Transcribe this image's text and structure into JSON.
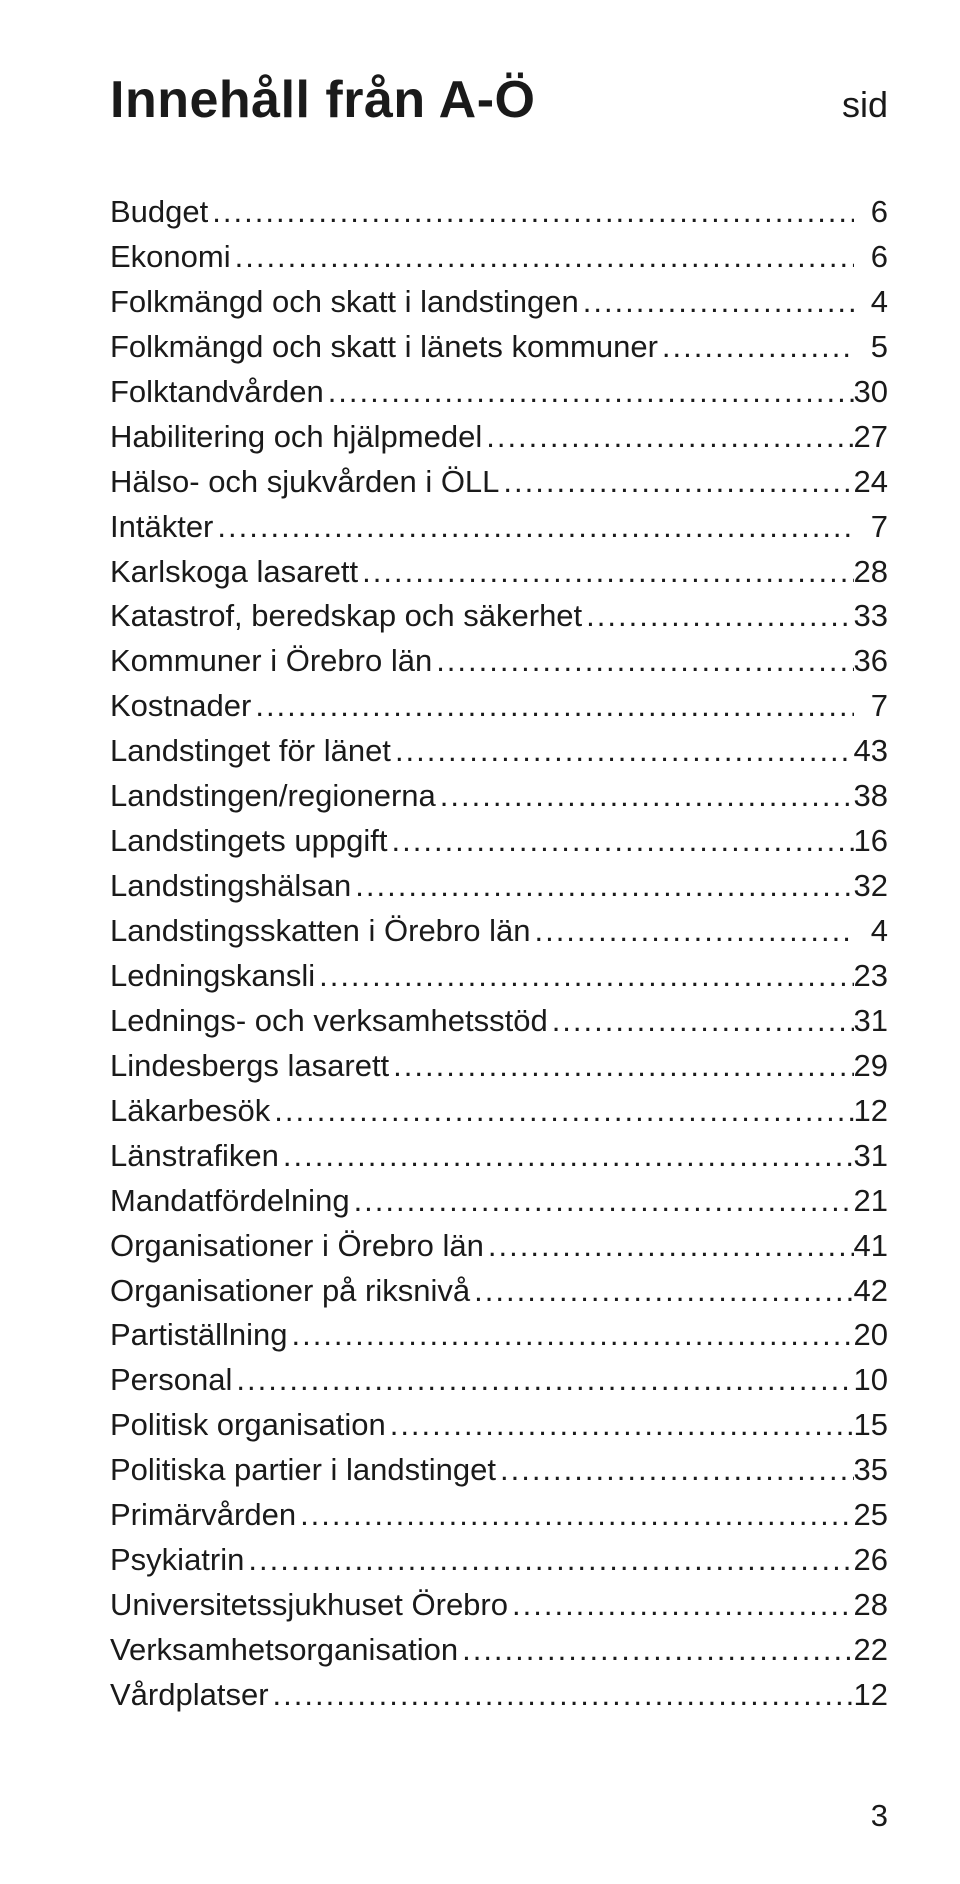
{
  "title": "Innehåll från A-Ö",
  "sid_label": "sid",
  "page_number": "3",
  "toc": [
    {
      "label": "Budget",
      "page": "6"
    },
    {
      "label": "Ekonomi",
      "page": "6"
    },
    {
      "label": "Folkmängd och skatt i landstingen",
      "page": "4"
    },
    {
      "label": "Folkmängd och skatt i länets kommuner",
      "page": "5"
    },
    {
      "label": "Folktandvården",
      "page": "30"
    },
    {
      "label": "Habilitering och hjälpmedel",
      "page": "27"
    },
    {
      "label": "Hälso- och sjukvården i ÖLL",
      "page": "24"
    },
    {
      "label": "Intäkter",
      "page": "7"
    },
    {
      "label": "Karlskoga lasarett",
      "page": "28"
    },
    {
      "label": "Katastrof, beredskap och säkerhet",
      "page": "33"
    },
    {
      "label": "Kommuner i Örebro län",
      "page": "36"
    },
    {
      "label": "Kostnader",
      "page": "7"
    },
    {
      "label": "Landstinget för länet",
      "page": "43"
    },
    {
      "label": "Landstingen/regionerna",
      "page": "38"
    },
    {
      "label": "Landstingets uppgift",
      "page": "16"
    },
    {
      "label": "Landstingshälsan",
      "page": "32"
    },
    {
      "label": "Landstingsskatten i Örebro län",
      "page": "4"
    },
    {
      "label": "Ledningskansli",
      "page": "23"
    },
    {
      "label": "Lednings- och verksamhetsstöd",
      "page": "31"
    },
    {
      "label": "Lindesbergs lasarett",
      "page": "29"
    },
    {
      "label": "Läkarbesök",
      "page": "12"
    },
    {
      "label": "Länstrafiken",
      "page": "31"
    },
    {
      "label": "Mandatfördelning",
      "page": "21"
    },
    {
      "label": "Organisationer i Örebro län",
      "page": "41"
    },
    {
      "label": "Organisationer på riksnivå",
      "page": "42"
    },
    {
      "label": "Partiställning",
      "page": "20"
    },
    {
      "label": "Personal",
      "page": "10"
    },
    {
      "label": "Politisk organisation",
      "page": "15"
    },
    {
      "label": "Politiska partier i landstinget",
      "page": "35"
    },
    {
      "label": "Primärvården",
      "page": "25"
    },
    {
      "label": "Psykiatrin",
      "page": "26"
    },
    {
      "label": "Universitetssjukhuset Örebro",
      "page": "28"
    },
    {
      "label": "Verksamhetsorganisation",
      "page": "22"
    },
    {
      "label": "Vårdplatser",
      "page": "12"
    }
  ],
  "colors": {
    "background": "#ffffff",
    "text": "#1a1a1a"
  },
  "typography": {
    "title_fontsize_pt": 34,
    "body_fontsize_pt": 20,
    "font_family": "sans-serif"
  }
}
